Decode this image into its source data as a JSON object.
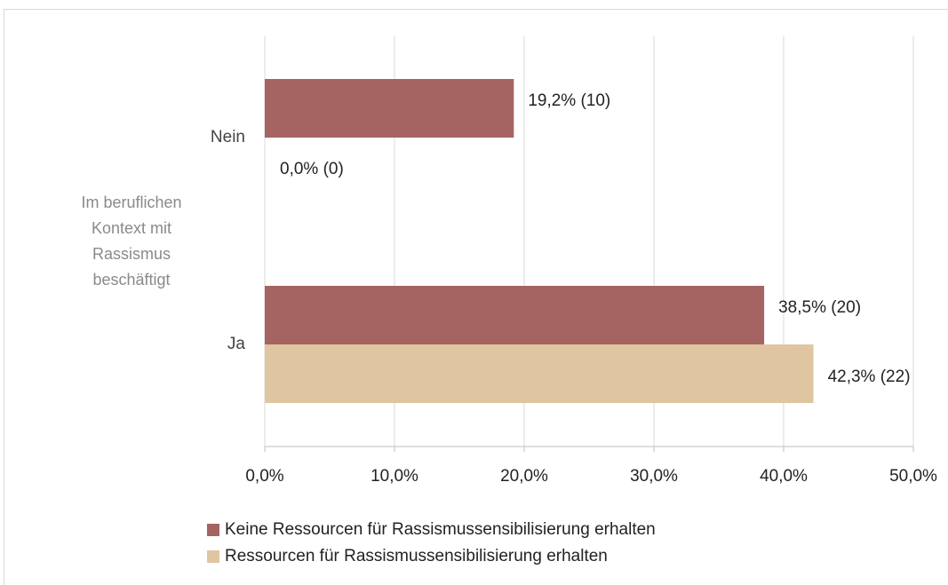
{
  "chart_data": {
    "type": "barh",
    "y_label": "Im beruflichen Kontext mit Rassismus beschäftigt",
    "categories": [
      "Nein",
      "Ja"
    ],
    "series": [
      {
        "name": "Keine Ressourcen für Rassismussensibilisierung erhalten",
        "color": "#a56461",
        "values": [
          19.2,
          38.5
        ],
        "value_labels": [
          "19,2% (10)",
          "38,5% (20)"
        ]
      },
      {
        "name": "Ressourcen für Rassismussensibilisierung erhalten",
        "color": "#dfc6a0",
        "values": [
          0,
          42.3
        ],
        "value_labels": [
          "0,0% (0)",
          "42,3% (22)"
        ]
      }
    ],
    "xlim": [
      0,
      50
    ],
    "xticks": [
      {
        "value": 0,
        "label": "0,0%"
      },
      {
        "value": 10,
        "label": "10,0%"
      },
      {
        "value": 20,
        "label": "20,0%"
      },
      {
        "value": 30,
        "label": "30,0%"
      },
      {
        "value": 40,
        "label": "40,0%"
      },
      {
        "value": 50,
        "label": "50,0%"
      }
    ],
    "grid": true
  }
}
